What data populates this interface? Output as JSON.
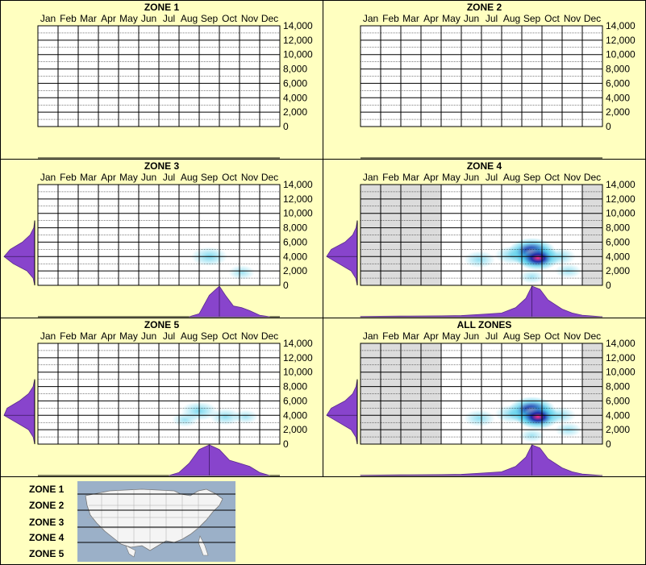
{
  "months": [
    "Jan",
    "Feb",
    "Mar",
    "Apr",
    "May",
    "Jun",
    "Jul",
    "Aug",
    "Sep",
    "Oct",
    "Nov",
    "Dec"
  ],
  "y_ticks": [
    "14,000",
    "12,000",
    "10,000",
    "8,000",
    "6,000",
    "4,000",
    "2,000",
    "0"
  ],
  "colors": {
    "background": "#ffffc0",
    "density": "#8844cc",
    "heat_low": "#40c8e8",
    "heat_mid": "#1a2aa8",
    "heat_high": "#ff2e80",
    "out_of_season": "#dcdcdc"
  },
  "chart_data": [
    {
      "type": "heatmap",
      "title": "ZONE 1",
      "xlabel": "",
      "ylabel": "",
      "ylim": [
        0,
        14000
      ],
      "categories": [
        "Jan",
        "Feb",
        "Mar",
        "Apr",
        "May",
        "Jun",
        "Jul",
        "Aug",
        "Sep",
        "Oct",
        "Nov",
        "Dec"
      ],
      "hotspots": [],
      "month_density": [],
      "elev_density": [],
      "shaded_months": []
    },
    {
      "type": "heatmap",
      "title": "ZONE 2",
      "xlabel": "",
      "ylabel": "",
      "ylim": [
        0,
        14000
      ],
      "categories": [
        "Jan",
        "Feb",
        "Mar",
        "Apr",
        "May",
        "Jun",
        "Jul",
        "Aug",
        "Sep",
        "Oct",
        "Nov",
        "Dec"
      ],
      "hotspots": [],
      "month_density": [],
      "elev_density": [],
      "shaded_months": []
    },
    {
      "type": "heatmap",
      "title": "ZONE 3",
      "xlabel": "",
      "ylabel": "",
      "ylim": [
        0,
        14000
      ],
      "categories": [
        "Jan",
        "Feb",
        "Mar",
        "Apr",
        "May",
        "Jun",
        "Jul",
        "Aug",
        "Sep",
        "Oct",
        "Nov",
        "Dec"
      ],
      "hotspots": [
        {
          "month": 9.0,
          "elev": 4000,
          "intensity": 0.35
        },
        {
          "month": 10.6,
          "elev": 1800,
          "intensity": 0.15
        }
      ],
      "month_density": [
        [
          8.0,
          0
        ],
        [
          8.5,
          0.1
        ],
        [
          9.0,
          0.7
        ],
        [
          9.5,
          1.0
        ],
        [
          9.8,
          0.7
        ],
        [
          10.2,
          0.35
        ],
        [
          10.6,
          0.3
        ],
        [
          11.0,
          0.2
        ],
        [
          11.5,
          0.05
        ],
        [
          12.0,
          0
        ]
      ],
      "elev_density": [
        [
          0,
          0
        ],
        [
          1000,
          0.05
        ],
        [
          2000,
          0.25
        ],
        [
          3000,
          0.7
        ],
        [
          4000,
          1.0
        ],
        [
          5000,
          0.8
        ],
        [
          6000,
          0.4
        ],
        [
          7000,
          0.15
        ],
        [
          8000,
          0.03
        ],
        [
          9000,
          0
        ]
      ],
      "shaded_months": []
    },
    {
      "type": "heatmap",
      "title": "ZONE 4",
      "xlabel": "",
      "ylabel": "",
      "ylim": [
        0,
        14000
      ],
      "categories": [
        "Jan",
        "Feb",
        "Mar",
        "Apr",
        "May",
        "Jun",
        "Jul",
        "Aug",
        "Sep",
        "Oct",
        "Nov",
        "Dec"
      ],
      "hotspots": [
        {
          "month": 9.0,
          "elev": 4600,
          "intensity": 1.0
        },
        {
          "month": 9.3,
          "elev": 3800,
          "intensity": 0.6
        },
        {
          "month": 6.4,
          "elev": 3600,
          "intensity": 0.25
        },
        {
          "month": 8.0,
          "elev": 4200,
          "intensity": 0.3
        },
        {
          "month": 10.4,
          "elev": 4000,
          "intensity": 0.25
        },
        {
          "month": 10.8,
          "elev": 2000,
          "intensity": 0.15
        },
        {
          "month": 9.0,
          "elev": 1200,
          "intensity": 0.12
        }
      ],
      "month_density": [
        [
          0.5,
          0.01
        ],
        [
          2.5,
          0.02
        ],
        [
          4.5,
          0.03
        ],
        [
          5.5,
          0.04
        ],
        [
          6.5,
          0.08
        ],
        [
          7.5,
          0.12
        ],
        [
          8.2,
          0.3
        ],
        [
          8.7,
          0.6
        ],
        [
          9.0,
          1.0
        ],
        [
          9.4,
          0.9
        ],
        [
          9.8,
          0.55
        ],
        [
          10.5,
          0.25
        ],
        [
          11.0,
          0.12
        ],
        [
          11.5,
          0.05
        ],
        [
          12.5,
          0
        ]
      ],
      "elev_density": [
        [
          0,
          0
        ],
        [
          1000,
          0.05
        ],
        [
          2000,
          0.2
        ],
        [
          3000,
          0.6
        ],
        [
          4000,
          1.0
        ],
        [
          5000,
          0.85
        ],
        [
          6000,
          0.4
        ],
        [
          7000,
          0.15
        ],
        [
          8000,
          0.04
        ],
        [
          9000,
          0
        ]
      ],
      "shaded_months": [
        "Jan",
        "Feb",
        "Mar",
        "Apr",
        "Dec"
      ]
    },
    {
      "type": "heatmap",
      "title": "ZONE 5",
      "xlabel": "",
      "ylabel": "",
      "ylim": [
        0,
        14000
      ],
      "categories": [
        "Jan",
        "Feb",
        "Mar",
        "Apr",
        "May",
        "Jun",
        "Jul",
        "Aug",
        "Sep",
        "Oct",
        "Nov",
        "Dec"
      ],
      "hotspots": [
        {
          "month": 8.5,
          "elev": 4600,
          "intensity": 0.35
        },
        {
          "month": 9.8,
          "elev": 3800,
          "intensity": 0.25
        },
        {
          "month": 7.8,
          "elev": 3400,
          "intensity": 0.15
        },
        {
          "month": 10.8,
          "elev": 3800,
          "intensity": 0.12
        }
      ],
      "month_density": [
        [
          7.0,
          0
        ],
        [
          7.5,
          0.1
        ],
        [
          8.0,
          0.4
        ],
        [
          8.5,
          0.85
        ],
        [
          9.0,
          1.0
        ],
        [
          9.5,
          0.85
        ],
        [
          10.0,
          0.5
        ],
        [
          10.5,
          0.4
        ],
        [
          11.0,
          0.3
        ],
        [
          11.5,
          0.1
        ],
        [
          12.0,
          0
        ]
      ],
      "elev_density": [
        [
          0,
          0
        ],
        [
          1000,
          0.05
        ],
        [
          2000,
          0.2
        ],
        [
          3000,
          0.6
        ],
        [
          4000,
          1.0
        ],
        [
          5000,
          0.9
        ],
        [
          6000,
          0.5
        ],
        [
          7000,
          0.2
        ],
        [
          8000,
          0.05
        ],
        [
          9000,
          0
        ]
      ],
      "shaded_months": []
    },
    {
      "type": "heatmap",
      "title": "ALL ZONES",
      "xlabel": "",
      "ylabel": "",
      "ylim": [
        0,
        14000
      ],
      "categories": [
        "Jan",
        "Feb",
        "Mar",
        "Apr",
        "May",
        "Jun",
        "Jul",
        "Aug",
        "Sep",
        "Oct",
        "Nov",
        "Dec"
      ],
      "hotspots": [
        {
          "month": 9.0,
          "elev": 4600,
          "intensity": 1.0
        },
        {
          "month": 9.3,
          "elev": 3800,
          "intensity": 0.6
        },
        {
          "month": 6.4,
          "elev": 3600,
          "intensity": 0.25
        },
        {
          "month": 8.0,
          "elev": 4200,
          "intensity": 0.3
        },
        {
          "month": 10.4,
          "elev": 4000,
          "intensity": 0.25
        },
        {
          "month": 10.8,
          "elev": 2000,
          "intensity": 0.15
        },
        {
          "month": 9.0,
          "elev": 1200,
          "intensity": 0.12
        }
      ],
      "month_density": [
        [
          0.5,
          0.01
        ],
        [
          2.5,
          0.02
        ],
        [
          4.5,
          0.03
        ],
        [
          5.5,
          0.04
        ],
        [
          6.5,
          0.08
        ],
        [
          7.5,
          0.12
        ],
        [
          8.2,
          0.3
        ],
        [
          8.7,
          0.6
        ],
        [
          9.0,
          1.0
        ],
        [
          9.4,
          0.9
        ],
        [
          9.8,
          0.55
        ],
        [
          10.5,
          0.25
        ],
        [
          11.0,
          0.12
        ],
        [
          11.5,
          0.05
        ],
        [
          12.5,
          0
        ]
      ],
      "elev_density": [
        [
          0,
          0
        ],
        [
          1000,
          0.05
        ],
        [
          2000,
          0.2
        ],
        [
          3000,
          0.6
        ],
        [
          4000,
          1.0
        ],
        [
          5000,
          0.85
        ],
        [
          6000,
          0.4
        ],
        [
          7000,
          0.15
        ],
        [
          8000,
          0.04
        ],
        [
          9000,
          0
        ]
      ],
      "shaded_months": [
        "Jan",
        "Feb",
        "Mar",
        "Apr",
        "Dec"
      ]
    }
  ],
  "legend": {
    "zones": [
      "ZONE 1",
      "ZONE 2",
      "ZONE 3",
      "ZONE 4",
      "ZONE 5"
    ],
    "map_icon": "usa-map-icon"
  }
}
